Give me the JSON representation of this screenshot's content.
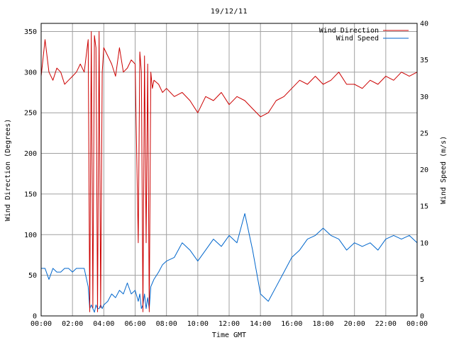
{
  "chart_data": {
    "type": "line",
    "title": "19/12/11",
    "xlabel": "Time GMT",
    "ylabel_left": "Wind Direction (Degrees)",
    "ylabel_right": "Wind Speed (m/s)",
    "x_ticks": [
      "00:00",
      "02:00",
      "04:00",
      "06:00",
      "08:00",
      "10:00",
      "12:00",
      "14:00",
      "16:00",
      "18:00",
      "20:00",
      "22:00",
      "00:00"
    ],
    "x_range_hours": [
      0,
      24
    ],
    "y_left_range": [
      0,
      360
    ],
    "y_left_ticks": [
      0,
      50,
      100,
      150,
      200,
      250,
      300,
      350
    ],
    "y_right_range": [
      0,
      40
    ],
    "y_right_ticks": [
      0,
      5,
      10,
      15,
      20,
      25,
      30,
      35,
      40
    ],
    "grid": true,
    "legend_position": "top-right",
    "series": [
      {
        "name": "Wind Direction",
        "axis": "left",
        "color": "#cc0000",
        "x": [
          0,
          0.25,
          0.5,
          0.75,
          1,
          1.25,
          1.5,
          1.75,
          2,
          2.25,
          2.5,
          2.75,
          3,
          3.1,
          3.2,
          3.3,
          3.4,
          3.5,
          3.6,
          3.7,
          3.8,
          3.9,
          4,
          4.25,
          4.5,
          4.75,
          5,
          5.25,
          5.5,
          5.75,
          6,
          6.2,
          6.3,
          6.4,
          6.5,
          6.6,
          6.7,
          6.8,
          6.9,
          7,
          7.1,
          7.2,
          7.5,
          7.75,
          8,
          8.5,
          9,
          9.5,
          10,
          10.5,
          11,
          11.5,
          12,
          12.5,
          13,
          13.5,
          14,
          14.5,
          15,
          15.5,
          16,
          16.5,
          17,
          17.5,
          18,
          18.5,
          19,
          19.5,
          20,
          20.5,
          21,
          21.5,
          22,
          22.5,
          23,
          23.5,
          24
        ],
        "y": [
          295,
          340,
          300,
          290,
          305,
          300,
          285,
          290,
          295,
          300,
          310,
          300,
          340,
          5,
          350,
          10,
          345,
          330,
          5,
          350,
          10,
          300,
          330,
          320,
          310,
          295,
          330,
          300,
          305,
          315,
          310,
          90,
          325,
          300,
          5,
          320,
          90,
          310,
          5,
          300,
          280,
          290,
          285,
          275,
          280,
          270,
          275,
          265,
          250,
          270,
          265,
          275,
          260,
          270,
          265,
          255,
          245,
          250,
          265,
          270,
          280,
          290,
          285,
          295,
          285,
          290,
          300,
          285,
          285,
          280,
          290,
          285,
          295,
          290,
          300,
          295,
          300
        ]
      },
      {
        "name": "Wind Speed",
        "axis": "right",
        "color": "#0066cc",
        "x": [
          0,
          0.25,
          0.5,
          0.75,
          1,
          1.25,
          1.5,
          1.75,
          2,
          2.25,
          2.5,
          2.75,
          3,
          3.1,
          3.2,
          3.3,
          3.4,
          3.5,
          3.6,
          3.7,
          3.8,
          3.9,
          4,
          4.25,
          4.5,
          4.75,
          5,
          5.25,
          5.5,
          5.75,
          6,
          6.2,
          6.3,
          6.4,
          6.5,
          6.6,
          6.7,
          6.8,
          6.9,
          7,
          7.1,
          7.2,
          7.5,
          7.75,
          8,
          8.5,
          9,
          9.5,
          10,
          10.5,
          11,
          11.5,
          12,
          12.5,
          13,
          13.5,
          14,
          14.5,
          15,
          15.5,
          16,
          16.5,
          17,
          17.5,
          18,
          18.5,
          19,
          19.5,
          20,
          20.5,
          21,
          21.5,
          22,
          22.5,
          23,
          23.5,
          24
        ],
        "y": [
          6.5,
          6.5,
          5,
          6.5,
          6,
          6,
          6.5,
          6.5,
          6,
          6.5,
          6.5,
          6.5,
          4,
          1,
          1.5,
          1,
          0.5,
          1.5,
          1,
          1,
          1.5,
          1,
          1.5,
          2,
          3,
          2.5,
          3.5,
          3,
          4.5,
          3,
          3.5,
          2,
          3,
          1,
          1.5,
          3,
          1,
          2.5,
          1,
          4,
          4.5,
          5,
          6,
          7,
          7.5,
          8,
          10,
          9,
          7.5,
          9,
          10.5,
          9.5,
          11,
          10,
          14,
          9,
          3,
          2,
          4,
          6,
          8,
          9,
          10.5,
          11,
          12,
          11,
          10.5,
          9,
          10,
          9.5,
          10,
          9,
          10.5,
          11,
          10.5,
          11,
          10
        ]
      }
    ]
  }
}
